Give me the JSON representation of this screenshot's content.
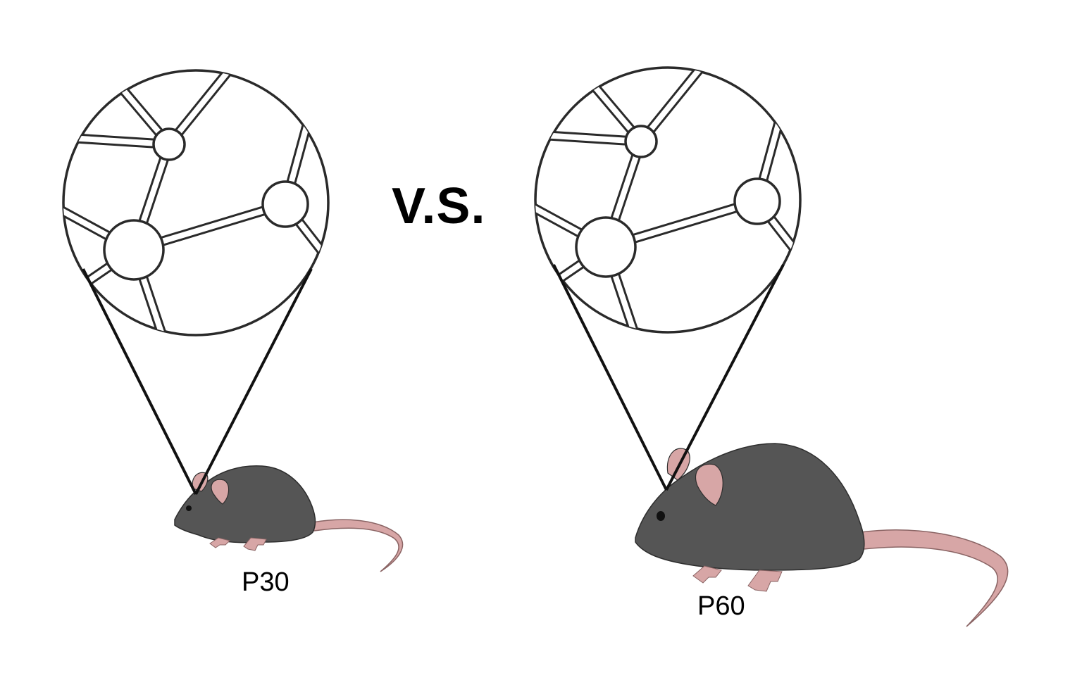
{
  "comparison": {
    "separator": "V.S.",
    "left_label": "P30",
    "right_label": "P60"
  },
  "colors": {
    "mouse_body": "#555555",
    "mouse_outline": "#2e2e2e",
    "mouse_pink": "#d7a6a6",
    "outline": "#2a2a2a"
  }
}
